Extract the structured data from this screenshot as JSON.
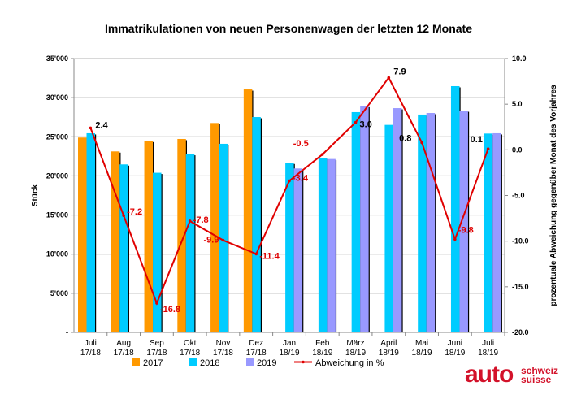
{
  "chart_data": {
    "type": "bar",
    "title": "Immatrikulationen von neuen Personenwagen der letzten 12 Monate",
    "ylabel": "Stück",
    "y2label": "prozentuale Abweichung gegenüber Monat des Vorjahres",
    "ylim": [
      0,
      35000
    ],
    "y2lim": [
      -20,
      10
    ],
    "yticks": [
      "-",
      "5'000",
      "10'000",
      "15'000",
      "20'000",
      "25'000",
      "30'000",
      "35'000"
    ],
    "y2ticks": [
      "-20.0",
      "-15.0",
      "-10.0",
      "-5.0",
      "0.0",
      "5.0",
      "10.0"
    ],
    "grid": true,
    "legend_position": "bottom",
    "categories": [
      [
        "Juli",
        "17/18"
      ],
      [
        "Aug",
        "17/18"
      ],
      [
        "Sep",
        "17/18"
      ],
      [
        "Okt",
        "17/18"
      ],
      [
        "Nov",
        "17/18"
      ],
      [
        "Dez",
        "17/18"
      ],
      [
        "Jan",
        "18/19"
      ],
      [
        "Feb",
        "18/19"
      ],
      [
        "März",
        "18/19"
      ],
      [
        "April",
        "18/19"
      ],
      [
        "Mai",
        "18/19"
      ],
      [
        "Juni",
        "18/19"
      ],
      [
        "Juli",
        "18/19"
      ]
    ],
    "series": [
      {
        "name": "2017",
        "type": "bar",
        "color": "#FF9900",
        "values": [
          24900,
          23130,
          24480,
          24720,
          26760,
          31050,
          null,
          null,
          null,
          null,
          null,
          null,
          null
        ]
      },
      {
        "name": "2018",
        "type": "bar",
        "color": "#00CCFF",
        "values": [
          25450,
          21470,
          20400,
          22790,
          24100,
          27520,
          21680,
          22300,
          28150,
          26520,
          27840,
          31470,
          25410
        ]
      },
      {
        "name": "2019",
        "type": "bar",
        "color": "#9999FF",
        "values": [
          null,
          null,
          null,
          null,
          null,
          null,
          20950,
          22160,
          28940,
          28660,
          28040,
          28350,
          25450
        ]
      },
      {
        "name": "Abweichung in %",
        "type": "line",
        "axis": "right",
        "color": "#E00000",
        "values": [
          2.4,
          -7.2,
          -16.8,
          -7.8,
          -9.9,
          -11.4,
          -3.4,
          -0.5,
          3.0,
          7.9,
          0.8,
          -9.8,
          0.1
        ],
        "labels": [
          "2.4",
          "-7.2",
          "-16.8",
          "-7.8",
          "-9.9",
          "-11.4",
          "-3.4",
          "-0.5",
          "3.0",
          "7.9",
          "0.8",
          "-9.8",
          "0.1"
        ]
      }
    ]
  },
  "logo": {
    "main": "auto",
    "line1": "schweiz",
    "line2": "suisse"
  }
}
